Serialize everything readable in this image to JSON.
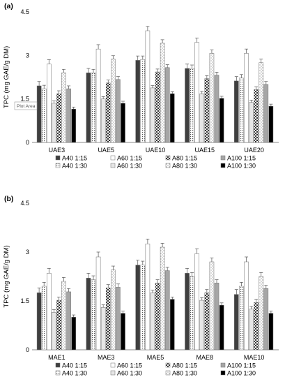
{
  "chart_data": [
    {
      "type": "bar",
      "panel_label": "(a)",
      "ylabel": "TPC (mg GAE/g DM)",
      "ylim": [
        0,
        4.5
      ],
      "yticks": [
        "0",
        "1.5",
        "3",
        "4.5"
      ],
      "categories": [
        "UAE3",
        "UAE5",
        "UAE10",
        "UAE15",
        "UAE20"
      ],
      "tooltip": "Plot Area",
      "legend_position": "bottom",
      "series": [
        {
          "name": "A40 1:15",
          "pattern": "darkgray",
          "values": [
            1.95,
            2.4,
            2.83,
            2.55,
            2.12
          ],
          "errors": [
            0.15,
            0.15,
            0.15,
            0.15,
            0.15
          ]
        },
        {
          "name": "A40 1:30",
          "pattern": "dots",
          "values": [
            1.85,
            2.4,
            2.86,
            2.55,
            2.22
          ],
          "errors": [
            0.12,
            0.12,
            0.12,
            0.12,
            0.12
          ]
        },
        {
          "name": "A60 1:15",
          "pattern": "white",
          "values": [
            2.7,
            3.22,
            3.85,
            3.45,
            3.07
          ],
          "errors": [
            0.15,
            0.15,
            0.15,
            0.15,
            0.15
          ]
        },
        {
          "name": "A60 1:30",
          "pattern": "lightgray",
          "values": [
            1.35,
            1.5,
            1.88,
            1.68,
            1.38
          ],
          "errors": [
            0.08,
            0.08,
            0.08,
            0.08,
            0.08
          ]
        },
        {
          "name": "A80 1:15",
          "pattern": "checker",
          "values": [
            1.68,
            2.05,
            2.43,
            2.2,
            1.82
          ],
          "errors": [
            0.1,
            0.1,
            0.1,
            0.1,
            0.1
          ]
        },
        {
          "name": "A80 1:30",
          "pattern": "dots2",
          "values": [
            2.4,
            2.87,
            3.42,
            3.07,
            2.75
          ],
          "errors": [
            0.12,
            0.12,
            0.12,
            0.12,
            0.12
          ]
        },
        {
          "name": "A100 1:15",
          "pattern": "medgray",
          "values": [
            1.85,
            2.17,
            2.58,
            2.32,
            2.0
          ],
          "errors": [
            0.1,
            0.1,
            0.1,
            0.1,
            0.1
          ]
        },
        {
          "name": "A100 1:30",
          "pattern": "black",
          "values": [
            1.15,
            1.35,
            1.68,
            1.52,
            1.25
          ],
          "errors": [
            0.07,
            0.07,
            0.07,
            0.07,
            0.07
          ]
        }
      ]
    },
    {
      "type": "bar",
      "panel_label": "(b)",
      "ylabel": "TPC (mg GAE/g DM)",
      "ylim": [
        0,
        4.5
      ],
      "yticks": [
        "0",
        "1.5",
        "3",
        "4.5"
      ],
      "categories": [
        "MAE1",
        "MAE3",
        "MAE5",
        "MAE8",
        "MAE10"
      ],
      "legend_position": "bottom",
      "series": [
        {
          "name": "A40 1:15",
          "pattern": "darkgray",
          "values": [
            1.75,
            2.2,
            2.6,
            2.35,
            1.7
          ],
          "errors": [
            0.15,
            0.15,
            0.15,
            0.15,
            0.15
          ]
        },
        {
          "name": "A40 1:30",
          "pattern": "dots",
          "values": [
            1.95,
            2.15,
            2.6,
            2.25,
            1.95
          ],
          "errors": [
            0.12,
            0.12,
            0.12,
            0.12,
            0.12
          ]
        },
        {
          "name": "A60 1:15",
          "pattern": "white",
          "values": [
            2.35,
            2.85,
            3.25,
            2.95,
            2.7
          ],
          "errors": [
            0.15,
            0.15,
            0.15,
            0.15,
            0.15
          ]
        },
        {
          "name": "A60 1:30",
          "pattern": "lightgray",
          "values": [
            1.15,
            1.3,
            1.75,
            1.52,
            1.25
          ],
          "errors": [
            0.08,
            0.08,
            0.08,
            0.08,
            0.08
          ]
        },
        {
          "name": "A80 1:15",
          "pattern": "checker",
          "values": [
            1.52,
            1.9,
            2.05,
            1.75,
            1.45
          ],
          "errors": [
            0.1,
            0.1,
            0.1,
            0.1,
            0.1
          ]
        },
        {
          "name": "A80 1:30",
          "pattern": "dots2",
          "values": [
            2.1,
            2.45,
            3.15,
            2.7,
            2.25
          ],
          "errors": [
            0.12,
            0.12,
            0.12,
            0.12,
            0.12
          ]
        },
        {
          "name": "A100 1:15",
          "pattern": "medgray",
          "values": [
            1.78,
            1.92,
            2.43,
            2.05,
            1.88
          ],
          "errors": [
            0.1,
            0.1,
            0.1,
            0.1,
            0.1
          ]
        },
        {
          "name": "A100 1:30",
          "pattern": "black",
          "values": [
            1.0,
            1.12,
            1.55,
            1.37,
            1.12
          ],
          "errors": [
            0.07,
            0.07,
            0.07,
            0.07,
            0.07
          ]
        }
      ]
    }
  ]
}
